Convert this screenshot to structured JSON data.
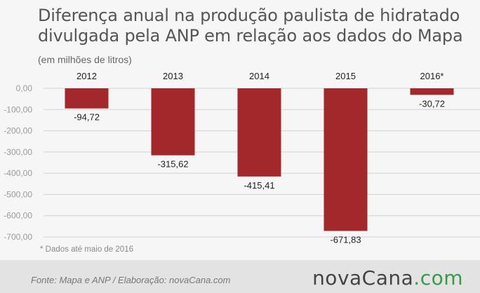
{
  "title": "Diferença anual na produção paulista de hidratado divulgada pela ANP em relação aos dados do Mapa",
  "subtitle": "(em milhões de litros)",
  "footnote": "* Dados até maio de 2016",
  "source": "Fonte:  Mapa  e  ANP  /  Elaboração:  novaCana.com",
  "brand": {
    "name": "novaCana",
    "dot": ".",
    "tld": "com",
    "accent": "#3a9a4b"
  },
  "colors": {
    "bar": "#a3282b",
    "grid": "#d2d2d2",
    "tick": "#9a9a9a",
    "label": "#222222"
  },
  "chart_data": {
    "type": "bar",
    "categories": [
      "2012",
      "2013",
      "2014",
      "2015",
      "2016*"
    ],
    "values": [
      -94.72,
      -315.62,
      -415.41,
      -671.83,
      -30.72
    ],
    "value_labels": [
      "-94,72",
      "-315,62",
      "-415,41",
      "-671,83",
      "-30,72"
    ],
    "y_ticks": [
      0,
      -100,
      -200,
      -300,
      -400,
      -500,
      -600,
      -700
    ],
    "y_tick_labels": [
      "0,00",
      "-100,00",
      "-200,00",
      "-300,00",
      "-400,00",
      "-500,00",
      "-600,00",
      "-700,00"
    ],
    "ylim": [
      -700,
      0
    ],
    "grid": true,
    "legend": "none"
  }
}
